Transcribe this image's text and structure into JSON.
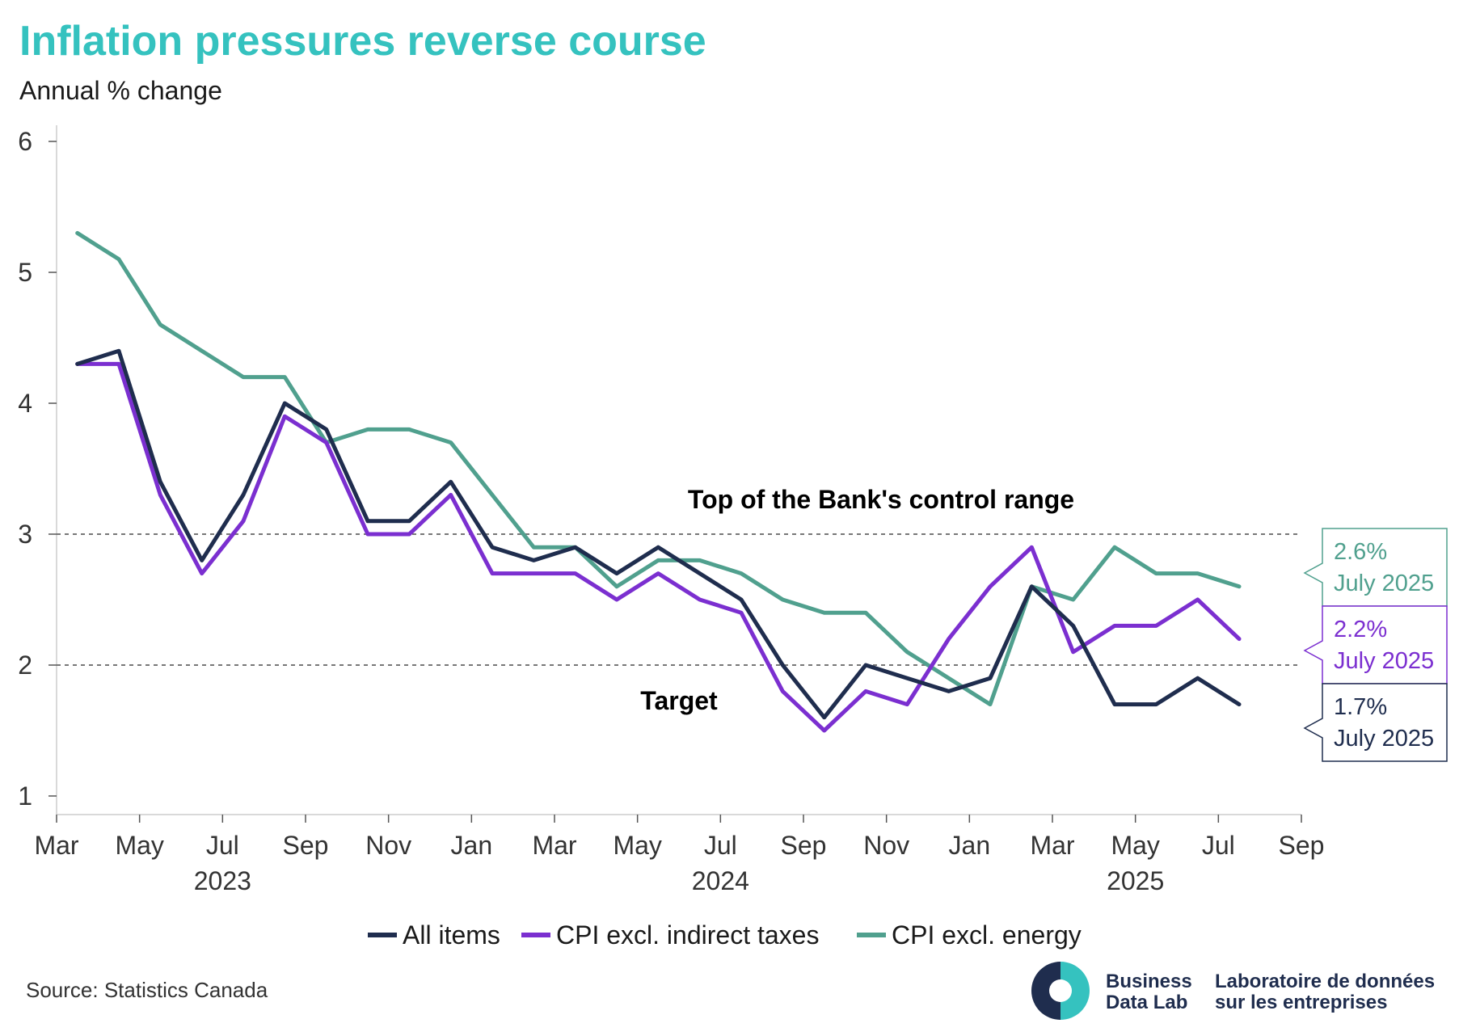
{
  "title": "Inflation pressures reverse course",
  "subtitle": "Annual % change",
  "source": "Source: Statistics Canada",
  "logo": {
    "en_line1": "Business",
    "en_line2": "Data Lab",
    "fr_line1": "Laboratoire de données",
    "fr_line2": "sur les entreprises",
    "colors": [
      "#1f2d4e",
      "#35c2bf"
    ]
  },
  "chart_data": {
    "type": "line",
    "title": "Inflation pressures reverse course",
    "ylabel": "Annual % change",
    "xlabel": "",
    "ylim": [
      1,
      6
    ],
    "yticks": [
      1,
      2,
      3,
      4,
      5,
      6
    ],
    "x_tick_labels": [
      "Mar",
      "May",
      "Jul",
      "Sep",
      "Nov",
      "Jan",
      "Mar",
      "May",
      "Jul",
      "Sep",
      "Nov",
      "Jan",
      "Mar",
      "May",
      "Jul",
      "Sep"
    ],
    "year_labels": [
      "2023",
      "2024",
      "2025"
    ],
    "x": [
      "2023-03",
      "2023-04",
      "2023-05",
      "2023-06",
      "2023-07",
      "2023-08",
      "2023-09",
      "2023-10",
      "2023-11",
      "2023-12",
      "2024-01",
      "2024-02",
      "2024-03",
      "2024-04",
      "2024-05",
      "2024-06",
      "2024-07",
      "2024-08",
      "2024-09",
      "2024-10",
      "2024-11",
      "2024-12",
      "2025-01",
      "2025-02",
      "2025-03",
      "2025-04",
      "2025-05",
      "2025-06",
      "2025-07"
    ],
    "series": [
      {
        "name": "All items",
        "color": "#1f2d4e",
        "values": [
          4.3,
          4.4,
          3.4,
          2.8,
          3.3,
          4.0,
          3.8,
          3.1,
          3.1,
          3.4,
          2.9,
          2.8,
          2.9,
          2.7,
          2.9,
          2.7,
          2.5,
          2.0,
          1.6,
          2.0,
          1.9,
          1.8,
          1.9,
          2.6,
          2.3,
          1.7,
          1.7,
          1.9,
          1.7
        ]
      },
      {
        "name": "CPI excl. indirect taxes",
        "color": "#7b2fd0",
        "values": [
          4.3,
          4.3,
          3.3,
          2.7,
          3.1,
          3.9,
          3.7,
          3.0,
          3.0,
          3.3,
          2.7,
          2.7,
          2.7,
          2.5,
          2.7,
          2.5,
          2.4,
          1.8,
          1.5,
          1.8,
          1.7,
          2.2,
          2.6,
          2.9,
          2.1,
          2.3,
          2.3,
          2.5,
          2.2
        ]
      },
      {
        "name": "CPI excl. energy",
        "color": "#50a08e",
        "values": [
          5.3,
          5.1,
          4.6,
          4.4,
          4.2,
          4.2,
          3.7,
          3.8,
          3.8,
          3.7,
          3.3,
          2.9,
          2.9,
          2.6,
          2.8,
          2.8,
          2.7,
          2.5,
          2.4,
          2.4,
          2.1,
          1.9,
          1.7,
          2.6,
          2.5,
          2.9,
          2.7,
          2.7,
          2.6
        ]
      }
    ],
    "reference_lines": [
      {
        "value": 3,
        "label": "Top of the Bank's control range"
      },
      {
        "value": 2,
        "label": "Target"
      }
    ],
    "callouts": [
      {
        "series": "CPI excl. energy",
        "line1": "2.6%",
        "line2": "July 2025"
      },
      {
        "series": "CPI excl. indirect taxes",
        "line1": "2.2%",
        "line2": "July 2025"
      },
      {
        "series": "All items",
        "line1": "1.7%",
        "line2": "July 2025"
      }
    ],
    "legend_position": "bottom",
    "grid": false
  }
}
